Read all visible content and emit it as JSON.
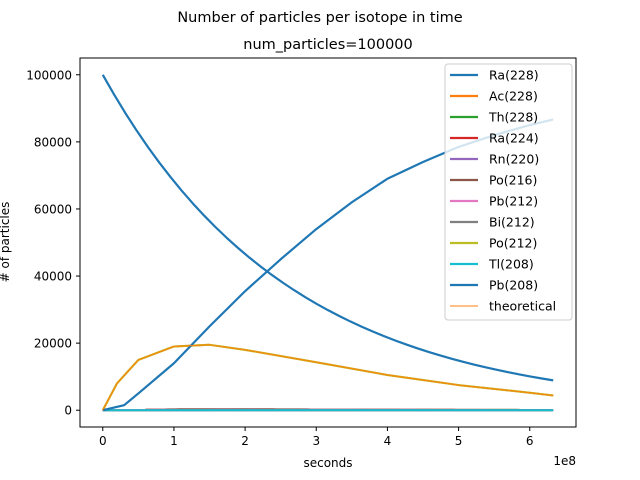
{
  "chart_data": {
    "type": "line",
    "suptitle": "Number of particles per isotope in time",
    "title": "num_particles=100000",
    "xlabel": "seconds",
    "ylabel": "# of particles",
    "x_offset_label": "1e8",
    "xlim": [
      -32000000.0,
      665000000.0
    ],
    "ylim": [
      -5000,
      105000
    ],
    "xticks": [
      0,
      100000000.0,
      200000000.0,
      300000000.0,
      400000000.0,
      500000000.0,
      600000000.0
    ],
    "xtick_labels": [
      "0",
      "1",
      "2",
      "3",
      "4",
      "5",
      "6"
    ],
    "yticks": [
      0,
      20000,
      40000,
      60000,
      80000,
      100000
    ],
    "ytick_labels": [
      "0",
      "20000",
      "40000",
      "60000",
      "80000",
      "100000"
    ],
    "legend_location": "upper right",
    "series": [
      {
        "name": "Ra(228)",
        "color": "#1f77b4",
        "kind": "ra228",
        "x": [
          0,
          50000000.0,
          100000000.0,
          150000000.0,
          200000000.0,
          250000000.0,
          300000000.0,
          350000000.0,
          400000000.0,
          450000000.0,
          500000000.0,
          550000000.0,
          600000000.0,
          633000000.0
        ],
        "y": [
          100000,
          82600,
          68300,
          56400,
          46600,
          38500,
          31800,
          26300,
          21700,
          17900,
          14800,
          12300,
          10100,
          8900
        ]
      },
      {
        "name": "Ac(228)",
        "color": "#ff7f0e",
        "kind": "ac228",
        "x": [
          0,
          20000000.0,
          50000000.0,
          100000000.0,
          150000000.0,
          200000000.0,
          300000000.0,
          400000000.0,
          500000000.0,
          600000000.0,
          633000000.0
        ],
        "y": [
          0,
          8000,
          15000,
          19000,
          19500,
          18000,
          14300,
          10500,
          7500,
          5200,
          4400
        ]
      },
      {
        "name": "Th(228)",
        "color": "#2ca02c",
        "kind": "small",
        "x": [
          0,
          100000000.0,
          200000000.0,
          300000000.0,
          400000000.0,
          500000000.0,
          600000000.0,
          633000000.0
        ],
        "y": [
          0,
          300,
          330,
          260,
          200,
          150,
          110,
          100
        ]
      },
      {
        "name": "Ra(224)",
        "color": "#d62728",
        "kind": "small",
        "x": [
          0,
          100000000.0,
          200000000.0,
          300000000.0,
          400000000.0,
          500000000.0,
          600000000.0,
          633000000.0
        ],
        "y": [
          0,
          300,
          330,
          260,
          200,
          150,
          110,
          100
        ]
      },
      {
        "name": "Rn(220)",
        "color": "#9467bd",
        "kind": "zero",
        "x": [
          0,
          633000000.0
        ],
        "y": [
          0,
          0
        ]
      },
      {
        "name": "Po(216)",
        "color": "#8c564b",
        "kind": "zero",
        "x": [
          0,
          633000000.0
        ],
        "y": [
          0,
          0
        ]
      },
      {
        "name": "Pb(212)",
        "color": "#e377c2",
        "kind": "small",
        "x": [
          0,
          100000000.0,
          200000000.0,
          300000000.0,
          400000000.0,
          500000000.0,
          600000000.0,
          633000000.0
        ],
        "y": [
          0,
          250,
          280,
          220,
          170,
          130,
          95,
          85
        ]
      },
      {
        "name": "Bi(212)",
        "color": "#7f7f7f",
        "kind": "small",
        "x": [
          0,
          100000000.0,
          200000000.0,
          300000000.0,
          400000000.0,
          500000000.0,
          600000000.0,
          633000000.0
        ],
        "y": [
          0,
          200,
          230,
          180,
          140,
          105,
          80,
          70
        ]
      },
      {
        "name": "Po(212)",
        "color": "#bcbd22",
        "kind": "ac228",
        "x": [
          0,
          20000000.0,
          50000000.0,
          100000000.0,
          150000000.0,
          200000000.0,
          300000000.0,
          400000000.0,
          500000000.0,
          600000000.0,
          633000000.0
        ],
        "y": [
          0,
          8000,
          15000,
          19000,
          19500,
          18000,
          14300,
          10500,
          7500,
          5200,
          4400
        ]
      },
      {
        "name": "Tl(208)",
        "color": "#17becf",
        "kind": "zero",
        "x": [
          0,
          633000000.0
        ],
        "y": [
          0,
          0
        ]
      },
      {
        "name": "Pb(208)",
        "color": "#1f77b4",
        "kind": "pb208",
        "x": [
          0,
          30000000.0,
          50000000.0,
          100000000.0,
          150000000.0,
          200000000.0,
          250000000.0,
          300000000.0,
          350000000.0,
          400000000.0,
          450000000.0,
          500000000.0,
          550000000.0,
          600000000.0,
          633000000.0
        ],
        "y": [
          0,
          1500,
          5000,
          14000,
          25000,
          35500,
          45000,
          54000,
          62000,
          69000,
          74000,
          78500,
          82000,
          85000,
          86700
        ]
      },
      {
        "name": "theoretical",
        "color": "#ff7f0e",
        "kind": "theory",
        "x": [
          0,
          20000000.0,
          50000000.0,
          100000000.0,
          150000000.0,
          200000000.0,
          300000000.0,
          400000000.0,
          500000000.0,
          600000000.0,
          633000000.0
        ],
        "y": [
          0,
          8000,
          15000,
          19000,
          19500,
          18000,
          14300,
          10500,
          7500,
          5200,
          4400
        ]
      }
    ]
  }
}
